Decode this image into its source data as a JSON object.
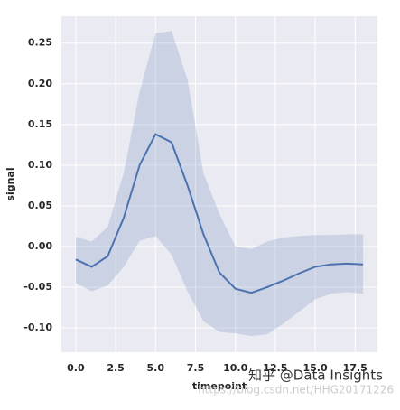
{
  "chart_data": {
    "type": "line",
    "x_label": "timepoint",
    "y_label": "signal",
    "x": [
      0,
      1,
      2,
      3,
      4,
      5,
      6,
      7,
      8,
      9,
      10,
      11,
      12,
      13,
      14,
      15,
      16,
      17,
      18
    ],
    "values": [
      -0.016,
      -0.025,
      -0.012,
      0.035,
      0.1,
      0.138,
      0.128,
      0.075,
      0.015,
      -0.032,
      -0.052,
      -0.057,
      -0.05,
      -0.042,
      -0.033,
      -0.025,
      -0.022,
      -0.021,
      -0.022
    ],
    "ci_upper": [
      0.012,
      0.006,
      0.024,
      0.09,
      0.19,
      0.262,
      0.265,
      0.205,
      0.09,
      0.04,
      0.0,
      -0.003,
      0.006,
      0.011,
      0.013,
      0.014,
      0.014,
      0.015,
      0.015
    ],
    "ci_lower": [
      -0.045,
      -0.055,
      -0.048,
      -0.025,
      0.007,
      0.013,
      -0.01,
      -0.055,
      -0.092,
      -0.105,
      -0.107,
      -0.11,
      -0.108,
      -0.095,
      -0.08,
      -0.065,
      -0.058,
      -0.056,
      -0.058
    ],
    "color": "#4c72b0",
    "xlim": [
      -0.9,
      18.9
    ],
    "xticks": [
      {
        "value": 0,
        "label": "0.0"
      },
      2.5,
      {
        "value": 5,
        "label": "5.0"
      },
      7.5,
      {
        "value": 10,
        "label": "10.0"
      },
      12.5,
      {
        "value": 15,
        "label": "15.0"
      },
      17.5
    ],
    "ylim": [
      -0.13,
      0.283
    ],
    "yticks": [
      {
        "value": -0.1,
        "label": "-0.10"
      },
      -0.05,
      {
        "value": 0,
        "label": "0.00"
      },
      0.05,
      {
        "value": 0.1,
        "label": "0.10"
      },
      0.15,
      {
        "value": 0.2,
        "label": "0.20"
      },
      0.25
    ],
    "grid": true,
    "annotations": [
      "知乎 @Data Insights",
      "https://blog.csdn.net/HHG20171226"
    ]
  }
}
